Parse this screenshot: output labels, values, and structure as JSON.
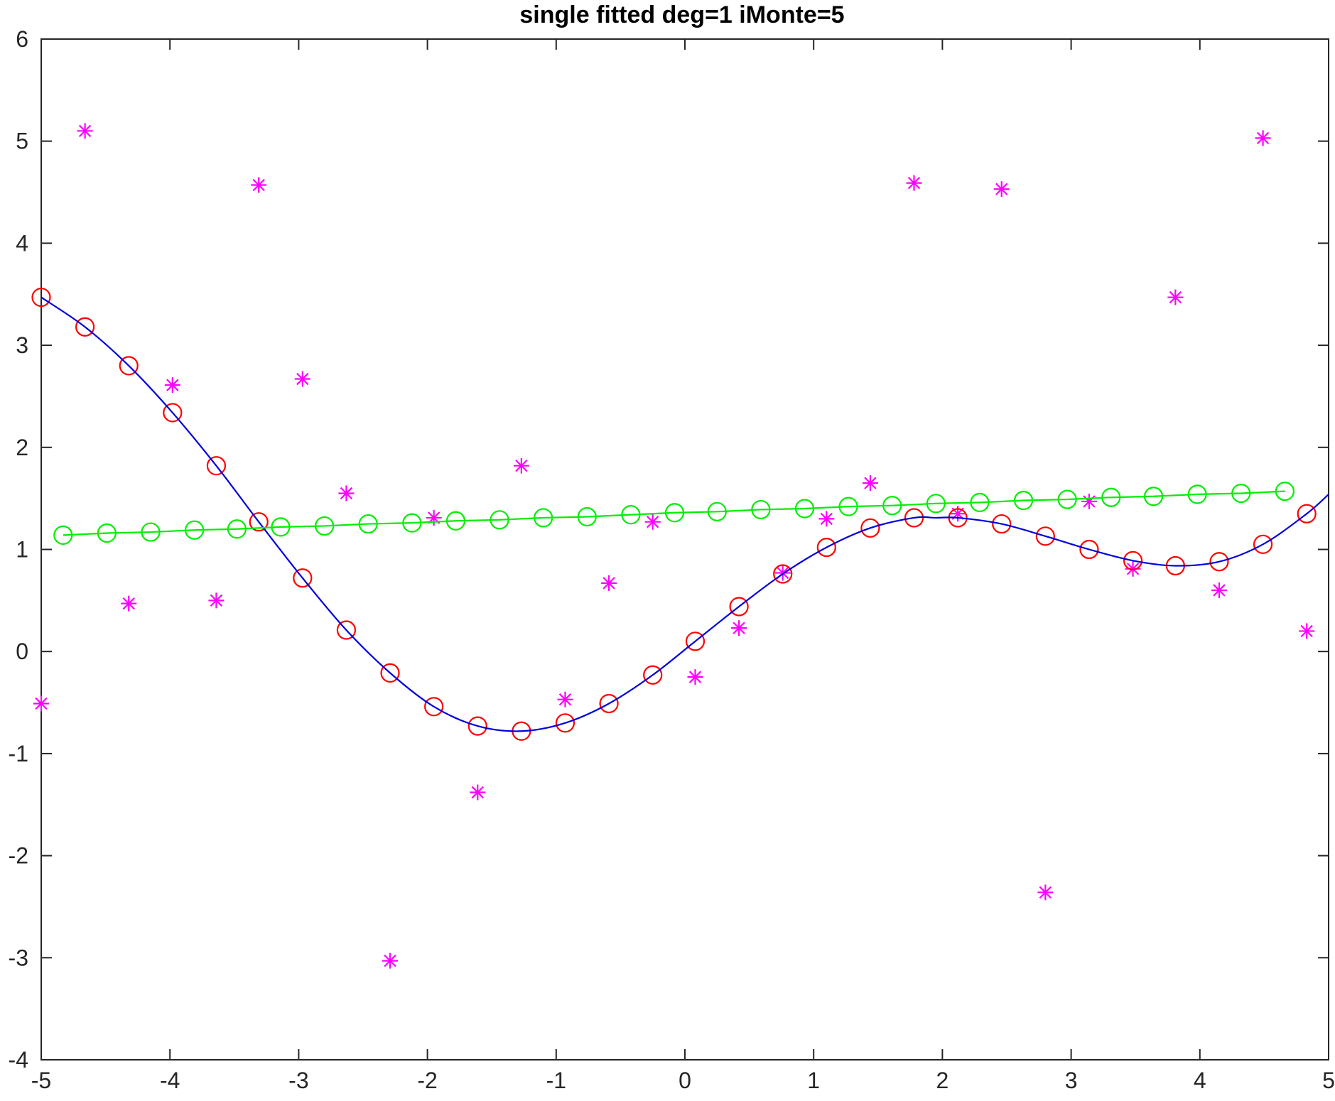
{
  "chart_data": {
    "type": "line",
    "title": "single fitted deg=1 iMonte=5",
    "xlabel": "",
    "ylabel": "",
    "xlim": [
      -5,
      5
    ],
    "ylim": [
      -4,
      6
    ],
    "x_ticks": [
      -5,
      -4,
      -3,
      -2,
      -1,
      0,
      1,
      2,
      3,
      4,
      5
    ],
    "y_ticks": [
      -4,
      -3,
      -2,
      -1,
      0,
      1,
      2,
      3,
      4,
      5,
      6
    ],
    "grid": false,
    "box": true,
    "series": [
      {
        "kind": "scatter",
        "marker": "asterisk",
        "color": "#ff00ff",
        "x": [
          -5.0,
          -4.66,
          -4.32,
          -3.98,
          -3.64,
          -3.31,
          -2.97,
          -2.63,
          -2.29,
          -1.95,
          -1.61,
          -1.27,
          -0.93,
          -0.59,
          -0.25,
          0.08,
          0.42,
          0.76,
          1.1,
          1.44,
          1.78,
          2.12,
          2.46,
          2.8,
          3.14,
          3.48,
          3.81,
          4.15,
          4.49,
          4.83
        ],
        "y": [
          -0.51,
          5.1,
          0.47,
          2.61,
          0.5,
          4.57,
          2.67,
          1.55,
          -3.03,
          1.31,
          -1.38,
          1.82,
          -0.47,
          0.67,
          1.27,
          -0.25,
          0.23,
          0.77,
          1.3,
          1.65,
          4.59,
          1.35,
          4.53,
          -2.36,
          1.47,
          0.81,
          3.47,
          0.6,
          5.03,
          0.2
        ]
      },
      {
        "kind": "scatter",
        "marker": "circle",
        "color": "#ff0000",
        "x": [
          -5.0,
          -4.66,
          -4.32,
          -3.98,
          -3.64,
          -3.31,
          -2.97,
          -2.63,
          -2.29,
          -1.95,
          -1.61,
          -1.27,
          -0.93,
          -0.59,
          -0.25,
          0.08,
          0.42,
          0.76,
          1.1,
          1.44,
          1.78,
          2.12,
          2.46,
          2.8,
          3.14,
          3.48,
          3.81,
          4.15,
          4.49,
          4.83
        ],
        "y": [
          3.47,
          3.18,
          2.8,
          2.34,
          1.82,
          1.27,
          0.72,
          0.21,
          -0.21,
          -0.54,
          -0.73,
          -0.78,
          -0.7,
          -0.51,
          -0.23,
          0.1,
          0.44,
          0.76,
          1.02,
          1.21,
          1.31,
          1.31,
          1.25,
          1.13,
          1.0,
          0.89,
          0.84,
          0.88,
          1.05,
          1.35
        ]
      },
      {
        "kind": "line",
        "color": "#0000dd",
        "x": [
          -5.0,
          -4.66,
          -4.32,
          -3.98,
          -3.64,
          -3.31,
          -2.97,
          -2.63,
          -2.29,
          -1.95,
          -1.61,
          -1.27,
          -0.93,
          -0.59,
          -0.25,
          0.08,
          0.42,
          0.76,
          1.1,
          1.44,
          1.78,
          1.95,
          2.12,
          2.46,
          2.8,
          3.14,
          3.48,
          3.81,
          4.15,
          4.49,
          4.83,
          5.0
        ],
        "y": [
          3.47,
          3.18,
          2.8,
          2.34,
          1.82,
          1.27,
          0.72,
          0.21,
          -0.21,
          -0.54,
          -0.73,
          -0.78,
          -0.7,
          -0.51,
          -0.23,
          0.1,
          0.44,
          0.76,
          1.02,
          1.21,
          1.31,
          1.31,
          1.31,
          1.25,
          1.13,
          1.0,
          0.89,
          0.84,
          0.88,
          1.05,
          1.35,
          1.54
        ]
      },
      {
        "kind": "line-markers",
        "marker": "circle",
        "color": "#00ee00",
        "x": [
          -4.83,
          -4.49,
          -4.15,
          -3.81,
          -3.48,
          -3.14,
          -2.8,
          -2.46,
          -2.12,
          -1.78,
          -1.44,
          -1.1,
          -0.76,
          -0.42,
          -0.08,
          0.25,
          0.59,
          0.93,
          1.27,
          1.61,
          1.95,
          2.29,
          2.63,
          2.97,
          3.31,
          3.64,
          3.98,
          4.32,
          4.66
        ],
        "y": [
          1.14,
          1.16,
          1.17,
          1.19,
          1.2,
          1.22,
          1.23,
          1.25,
          1.26,
          1.28,
          1.29,
          1.31,
          1.32,
          1.34,
          1.36,
          1.37,
          1.39,
          1.4,
          1.42,
          1.43,
          1.45,
          1.46,
          1.48,
          1.49,
          1.51,
          1.52,
          1.54,
          1.55,
          1.57
        ]
      }
    ]
  }
}
